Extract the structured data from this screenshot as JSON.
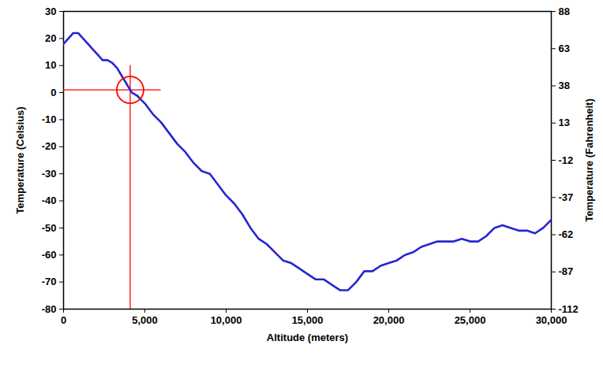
{
  "chart_data": {
    "type": "line",
    "x_label": "Altitude (meters)",
    "y_label": "Temperature (Celsius)",
    "y2_label": "Temperature (Fahrenheit)",
    "x": [
      0,
      300,
      600,
      900,
      1200,
      1500,
      1800,
      2100,
      2400,
      2700,
      3000,
      3300,
      3600,
      3900,
      4200,
      4500,
      5000,
      5500,
      6000,
      6500,
      7000,
      7500,
      8000,
      8500,
      9000,
      9500,
      10000,
      10500,
      11000,
      11500,
      12000,
      12500,
      13000,
      13500,
      14000,
      14500,
      15000,
      15500,
      16000,
      16500,
      17000,
      17500,
      18000,
      18500,
      19000,
      19500,
      20000,
      20500,
      21000,
      21500,
      22000,
      22500,
      23000,
      23500,
      24000,
      24500,
      25000,
      25500,
      26000,
      26500,
      27000,
      27500,
      28000,
      28500,
      29000,
      29500,
      30000
    ],
    "series": [
      {
        "color": "#2626d0",
        "values": [
          18,
          20,
          22,
          22,
          20,
          18,
          16,
          14,
          12,
          12,
          11,
          9,
          6,
          3,
          0,
          -1,
          -4,
          -8,
          -11,
          -15,
          -19,
          -22,
          -26,
          -29,
          -30,
          -34,
          -38,
          -41,
          -45,
          -50,
          -54,
          -56,
          -59,
          -62,
          -63,
          -65,
          -67,
          -69,
          -69,
          -71,
          -73,
          -73,
          -70,
          -66,
          -66,
          -64,
          -63,
          -62,
          -60,
          -59,
          -57,
          -56,
          -55,
          -55,
          -55,
          -54,
          -55,
          -55,
          -53,
          -50,
          -49,
          -50,
          -51,
          -51,
          -52,
          -50,
          -47
        ]
      }
    ],
    "xlim": [
      0,
      30000
    ],
    "xticks": [
      0,
      {
        "value": 5000,
        "label": "5,000"
      },
      {
        "value": 10000,
        "label": "10,000"
      },
      {
        "value": 15000,
        "label": "15,000"
      },
      {
        "value": 20000,
        "label": "20,000"
      },
      {
        "value": 25000,
        "label": "25,000"
      },
      {
        "value": 30000,
        "label": "30,000"
      }
    ],
    "ylim": [
      -80,
      30
    ],
    "yticks": [
      -80,
      -70,
      -60,
      -50,
      -40,
      -30,
      -20,
      -10,
      0,
      10,
      20,
      30
    ],
    "y2lim": [
      -112,
      88
    ],
    "y2ticks": [
      -112,
      -87,
      -62,
      -37,
      -12,
      13,
      38,
      63,
      88
    ],
    "grid": false,
    "crosshair": {
      "x": 4100,
      "y": 1,
      "x_extent": [
        0,
        6000
      ],
      "y_extent": [
        -80,
        10
      ],
      "color": "#ff0000",
      "marker": "circle"
    }
  }
}
